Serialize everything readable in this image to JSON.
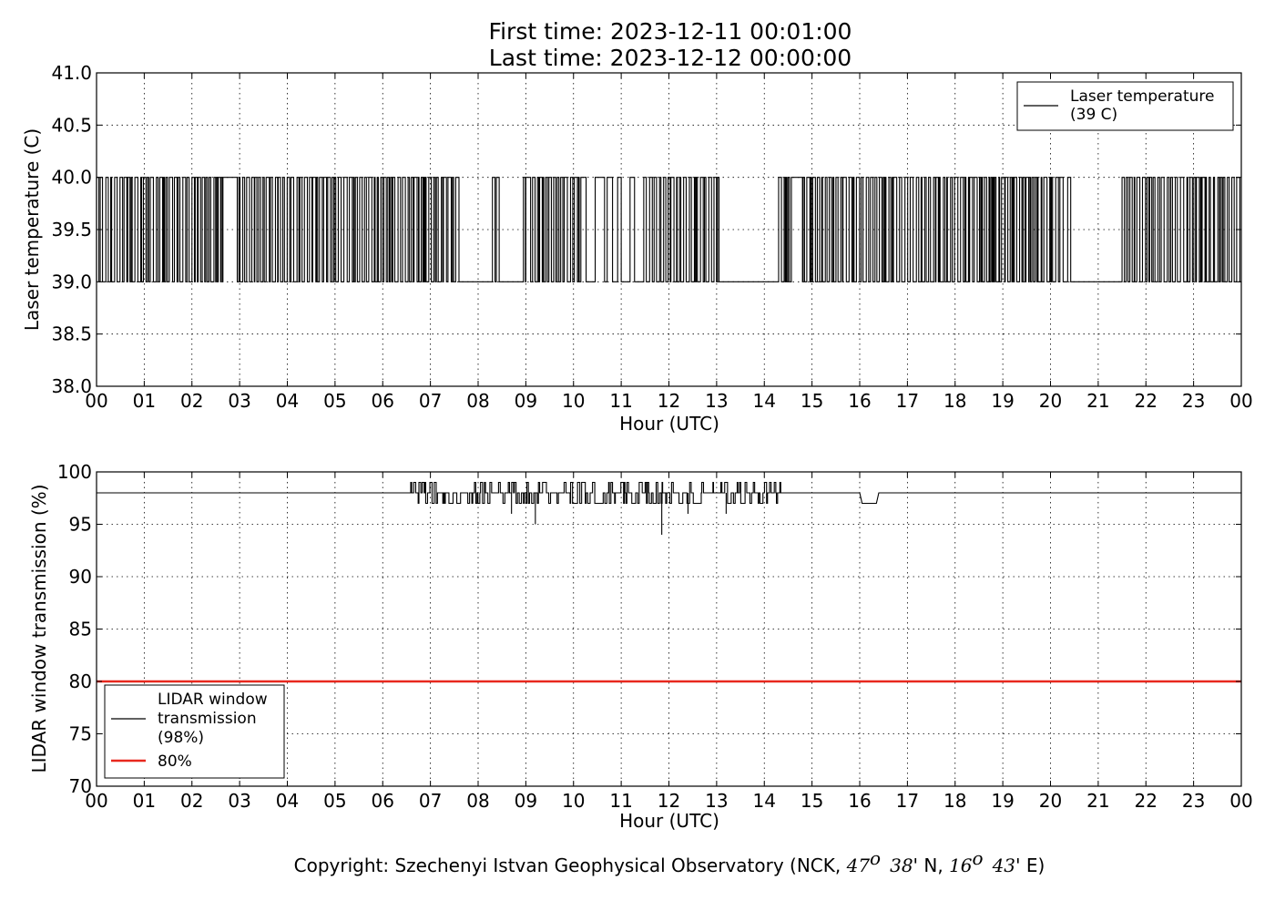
{
  "header": {
    "first_time": "First time: 2023-12-11 00:01:00",
    "last_time": "Last time: 2023-12-12 00:00:00"
  },
  "footer": {
    "copyright_prefix": "Copyright: Szechenyi Istvan Geophysical Observatory (NCK, ",
    "lat_deg": "47",
    "lat_deg_mark": "o",
    "lat_min": "38",
    "lat_rest": "' N, ",
    "lon_deg": "16",
    "lon_deg_mark": "o",
    "lon_min": "43",
    "lon_rest": "' E)"
  },
  "chart_data": [
    {
      "type": "line",
      "xlabel": "Hour (UTC)",
      "ylabel": "Laser temperature (C)",
      "xlim": [
        0,
        24
      ],
      "ylim": [
        38.0,
        41.0
      ],
      "x_ticks": [
        "00",
        "01",
        "02",
        "03",
        "04",
        "05",
        "06",
        "07",
        "08",
        "09",
        "10",
        "11",
        "12",
        "13",
        "14",
        "15",
        "16",
        "17",
        "18",
        "19",
        "20",
        "21",
        "22",
        "23",
        "00"
      ],
      "y_ticks": [
        "38.0",
        "38.5",
        "39.0",
        "39.5",
        "40.0",
        "40.5",
        "41.0"
      ],
      "grid": true,
      "legend_position": "top-right",
      "series": [
        {
          "name": "Laser temperature",
          "legend_label": [
            "Laser temperature",
            "(39 C)"
          ],
          "color": "#000000",
          "levels": [
            39.0,
            40.0
          ],
          "description_values": "signal toggles between 39.0 and 40.0 C; dense switching in active periods",
          "dense_intervals": [
            [
              0.0,
              2.65
            ],
            [
              2.95,
              7.6
            ],
            [
              8.3,
              8.45
            ],
            [
              8.95,
              10.15
            ],
            [
              10.5,
              10.6
            ],
            [
              11.3,
              13.0
            ],
            [
              14.3,
              15.0
            ],
            [
              15.0,
              20.2
            ],
            [
              21.5,
              24.0
            ]
          ],
          "steady_high_intervals": [
            [
              2.65,
              2.95
            ],
            [
              9.0,
              9.1
            ],
            [
              14.6,
              14.8
            ]
          ],
          "steady_low_intervals": [
            [
              7.6,
              8.3
            ],
            [
              8.45,
              8.95
            ],
            [
              13.05,
              14.3
            ],
            [
              20.5,
              21.5
            ]
          ]
        }
      ]
    },
    {
      "type": "line",
      "xlabel": "Hour (UTC)",
      "ylabel": "LIDAR window transmission (%)",
      "xlim": [
        0,
        24
      ],
      "ylim": [
        70,
        100
      ],
      "x_ticks": [
        "00",
        "01",
        "02",
        "03",
        "04",
        "05",
        "06",
        "07",
        "08",
        "09",
        "10",
        "11",
        "12",
        "13",
        "14",
        "15",
        "16",
        "17",
        "18",
        "19",
        "20",
        "21",
        "22",
        "23",
        "00"
      ],
      "y_ticks": [
        "70",
        "75",
        "80",
        "85",
        "90",
        "95",
        "100"
      ],
      "grid": true,
      "legend_position": "bottom-left",
      "series": [
        {
          "name": "LIDAR window transmission",
          "legend_label": [
            "LIDAR window",
            "transmission",
            "(98%)"
          ],
          "color": "#000000",
          "baseline": 98,
          "noisy_interval": [
            6.55,
            14.35
          ],
          "noise_range": [
            97,
            99
          ],
          "dips": [
            {
              "x": 8.7,
              "y": 96
            },
            {
              "x": 9.2,
              "y": 95
            },
            {
              "x": 11.85,
              "y": 94
            },
            {
              "x": 12.4,
              "y": 96
            },
            {
              "x": 13.2,
              "y": 96
            }
          ],
          "step_down": {
            "from": 16.0,
            "to": 16.35,
            "y": 97
          }
        },
        {
          "name": "80%",
          "legend_label": [
            "80%"
          ],
          "color": "#e8281e",
          "constant": 80
        }
      ]
    }
  ]
}
